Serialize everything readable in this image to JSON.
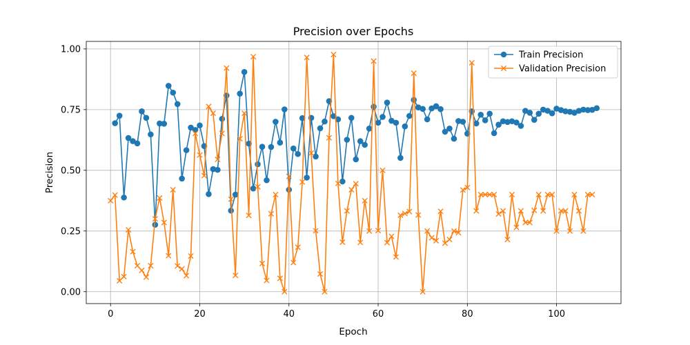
{
  "chart_data": {
    "type": "line",
    "title": "Precision over Epochs",
    "xlabel": "Epoch",
    "ylabel": "Precision",
    "xlim": [
      -5.45,
      114.45
    ],
    "ylim": [
      -0.049,
      1.031
    ],
    "xticks": [
      0,
      20,
      40,
      60,
      80,
      100
    ],
    "xtick_labels": [
      "0",
      "20",
      "40",
      "60",
      "80",
      "100"
    ],
    "yticks": [
      0.0,
      0.25,
      0.5,
      0.75,
      1.0
    ],
    "ytick_labels": [
      "0.00",
      "0.25",
      "0.50",
      "0.75",
      "1.00"
    ],
    "grid": true,
    "legend_position": "top-right",
    "series": [
      {
        "name": "Train Precision",
        "color": "#1f77b4",
        "marker": "circle",
        "x": [
          1,
          2,
          3,
          4,
          5,
          6,
          7,
          8,
          9,
          10,
          11,
          12,
          13,
          14,
          15,
          16,
          17,
          18,
          19,
          20,
          21,
          22,
          23,
          24,
          25,
          26,
          27,
          28,
          29,
          30,
          31,
          32,
          33,
          34,
          35,
          36,
          37,
          38,
          39,
          40,
          41,
          42,
          43,
          44,
          45,
          46,
          47,
          48,
          49,
          50,
          51,
          52,
          53,
          54,
          55,
          56,
          57,
          58,
          59,
          60,
          61,
          62,
          63,
          64,
          65,
          66,
          67,
          68,
          69,
          70,
          71,
          72,
          73,
          74,
          75,
          76,
          77,
          78,
          79,
          80,
          81,
          82,
          83,
          84,
          85,
          86,
          87,
          88,
          89,
          90,
          91,
          92,
          93,
          94,
          95,
          96,
          97,
          98,
          99,
          100,
          101,
          102,
          103,
          104,
          105,
          106,
          107,
          108,
          109
        ],
        "values": [
          0.694,
          0.725,
          0.388,
          0.633,
          0.62,
          0.611,
          0.743,
          0.716,
          0.648,
          0.276,
          0.693,
          0.692,
          0.848,
          0.82,
          0.773,
          0.466,
          0.583,
          0.676,
          0.666,
          0.685,
          0.6,
          0.402,
          0.505,
          0.502,
          0.712,
          0.808,
          0.334,
          0.4,
          0.816,
          0.905,
          0.61,
          0.425,
          0.525,
          0.597,
          0.459,
          0.596,
          0.7,
          0.614,
          0.751,
          0.42,
          0.59,
          0.567,
          0.715,
          0.47,
          0.716,
          0.557,
          0.673,
          0.701,
          0.785,
          0.723,
          0.71,
          0.454,
          0.626,
          0.716,
          0.545,
          0.62,
          0.605,
          0.672,
          0.762,
          0.696,
          0.72,
          0.779,
          0.704,
          0.696,
          0.551,
          0.681,
          0.724,
          0.79,
          0.759,
          0.753,
          0.71,
          0.755,
          0.764,
          0.752,
          0.659,
          0.672,
          0.63,
          0.703,
          0.7,
          0.651,
          0.743,
          0.693,
          0.729,
          0.706,
          0.733,
          0.653,
          0.688,
          0.702,
          0.699,
          0.702,
          0.697,
          0.683,
          0.745,
          0.737,
          0.708,
          0.733,
          0.75,
          0.745,
          0.735,
          0.754,
          0.748,
          0.743,
          0.741,
          0.737,
          0.745,
          0.75,
          0.748,
          0.749,
          0.756
        ]
      },
      {
        "name": "Validation Precision",
        "color": "#ff7f0e",
        "marker": "x",
        "x": [
          0,
          1,
          2,
          3,
          4,
          5,
          6,
          7,
          8,
          9,
          10,
          11,
          12,
          13,
          14,
          15,
          16,
          17,
          18,
          19,
          20,
          21,
          22,
          23,
          24,
          25,
          26,
          27,
          28,
          29,
          30,
          31,
          32,
          33,
          34,
          35,
          36,
          37,
          38,
          39,
          40,
          41,
          42,
          43,
          44,
          45,
          46,
          47,
          48,
          49,
          50,
          51,
          52,
          53,
          54,
          55,
          56,
          57,
          58,
          59,
          60,
          61,
          62,
          63,
          64,
          65,
          66,
          67,
          68,
          69,
          70,
          71,
          72,
          73,
          74,
          75,
          76,
          77,
          78,
          79,
          80,
          81,
          82,
          83,
          84,
          85,
          86,
          87,
          88,
          89,
          90,
          91,
          92,
          93,
          94,
          95,
          96,
          97,
          98,
          99,
          100,
          101,
          102,
          103,
          104,
          105,
          106,
          107,
          108
        ],
        "values": [
          0.375,
          0.398,
          0.045,
          0.062,
          0.255,
          0.165,
          0.107,
          0.088,
          0.06,
          0.107,
          0.3,
          0.386,
          0.285,
          0.148,
          0.42,
          0.106,
          0.094,
          0.066,
          0.147,
          0.652,
          0.563,
          0.478,
          0.763,
          0.735,
          0.545,
          0.652,
          0.921,
          0.381,
          0.067,
          0.63,
          0.735,
          0.314,
          0.968,
          0.432,
          0.116,
          0.046,
          0.321,
          0.4,
          0.055,
          0.0,
          0.475,
          0.12,
          0.183,
          0.452,
          0.965,
          0.571,
          0.251,
          0.073,
          0.0,
          0.634,
          0.977,
          0.446,
          0.204,
          0.333,
          0.42,
          0.445,
          0.203,
          0.375,
          0.25,
          0.95,
          0.252,
          0.5,
          0.202,
          0.228,
          0.143,
          0.315,
          0.322,
          0.33,
          0.9,
          0.316,
          0.0,
          0.25,
          0.222,
          0.21,
          0.331,
          0.2,
          0.215,
          0.25,
          0.243,
          0.419,
          0.429,
          0.943,
          0.333,
          0.4,
          0.4,
          0.4,
          0.4,
          0.32,
          0.333,
          0.215,
          0.4,
          0.265,
          0.333,
          0.285,
          0.285,
          0.335,
          0.4,
          0.333,
          0.4,
          0.4,
          0.25,
          0.333,
          0.333,
          0.25,
          0.4,
          0.333,
          0.25,
          0.4,
          0.4
        ]
      }
    ]
  }
}
